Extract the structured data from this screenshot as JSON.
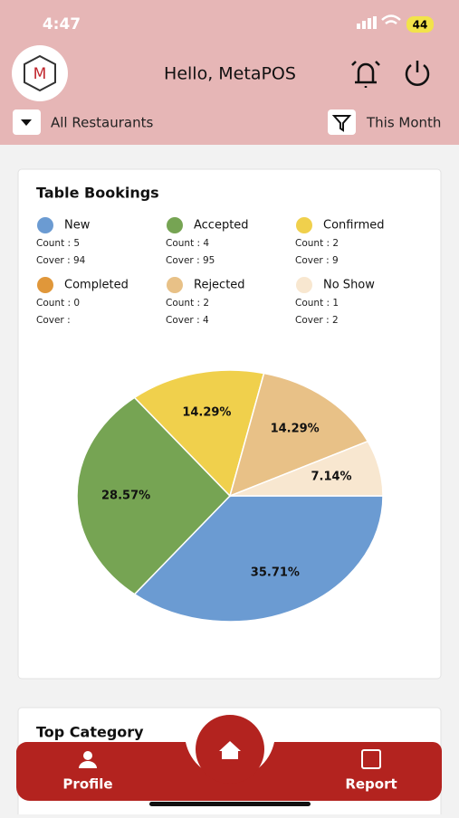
{
  "status_bar": {
    "time": "4:47",
    "battery": "44"
  },
  "header": {
    "logo": "M",
    "greeting": "Hello, MetaPOS",
    "restaurant_filter": "All Restaurants",
    "period_filter": "This Month"
  },
  "chart_data": {
    "type": "pie",
    "title": "Table Bookings",
    "categories": [
      "New",
      "Accepted",
      "Confirmed",
      "Completed",
      "Rejected",
      "No Show"
    ],
    "values": [
      35.71,
      28.57,
      14.29,
      0,
      14.29,
      7.14
    ],
    "value_labels": [
      "35.71%",
      "28.57%",
      "14.29%",
      null,
      "14.29%",
      "7.14%"
    ],
    "colors": [
      "#6b9bd2",
      "#76a453",
      "#f0d04c",
      "#e0973a",
      "#e8c187",
      "#f8e7d0"
    ],
    "counts": [
      "Count : 5",
      "Count : 4",
      "Count : 2",
      "Count : 0",
      "Count : 2",
      "Count : 1"
    ],
    "covers": [
      "Cover : 94",
      "Cover : 95",
      "Cover : 9",
      "Cover :",
      "Cover : 4",
      "Cover : 2"
    ]
  },
  "top_category": {
    "title": "Top Category"
  },
  "nav": {
    "profile": "Profile",
    "report": "Report"
  }
}
